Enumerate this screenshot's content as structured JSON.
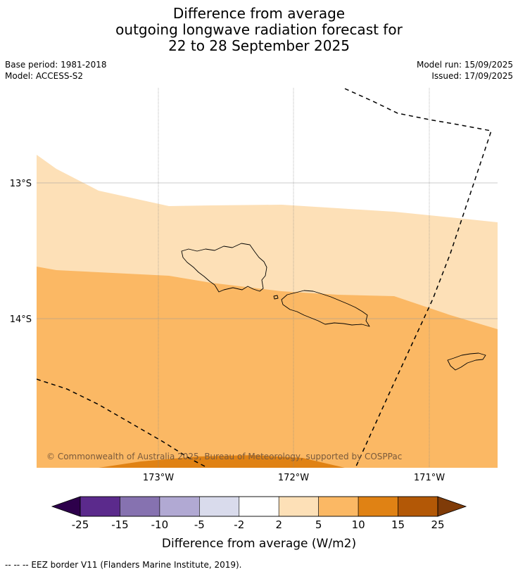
{
  "title": {
    "line1": "Difference from average",
    "line2": "outgoing longwave radiation forecast for",
    "line3": "22 to 28 September 2025"
  },
  "meta": {
    "base_period": "Base period: 1981-2018",
    "model": "Model: ACCESS-S2",
    "model_run": "Model run: 15/09/2025",
    "issued": "Issued: 17/09/2025"
  },
  "map": {
    "lat_labels": [
      "13°S",
      "14°S"
    ],
    "lon_labels": [
      "173°W",
      "172°W",
      "171°W"
    ],
    "copyright": "© Commonwealth of Australia 2025, Bureau of Meteorology, supported by COSPPac"
  },
  "colorbar": {
    "ticks": [
      "-25",
      "-15",
      "-10",
      "-5",
      "-2",
      "2",
      "5",
      "10",
      "15",
      "25"
    ],
    "colors": [
      "#5b2a8c",
      "#8672b0",
      "#b1a9d3",
      "#d9dbec",
      "#ffffff",
      "#fde0b7",
      "#fbb864",
      "#e08214",
      "#b35806"
    ],
    "under_color": "#2d004b",
    "over_color": "#7f3b08",
    "label": "Difference from average (W/m2)"
  },
  "footnote": "--  --  -- EEZ border V11 (Flanders Marine Institute, 2019)."
}
